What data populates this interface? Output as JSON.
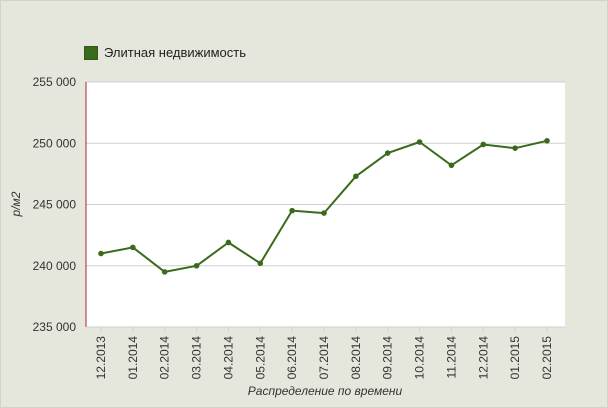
{
  "chart_data": {
    "type": "line",
    "categories": [
      "12.2013",
      "01.2014",
      "02.2014",
      "03.2014",
      "04.2014",
      "05.2014",
      "06.2014",
      "07.2014",
      "08.2014",
      "09.2014",
      "10.2014",
      "11.2014",
      "12.2014",
      "01.2015",
      "02.2015"
    ],
    "series": [
      {
        "name": "Элитная недвижимость",
        "values": [
          241000,
          241500,
          239500,
          240000,
          241900,
          240200,
          244500,
          244300,
          247300,
          249200,
          250100,
          248200,
          249900,
          249600,
          250200
        ]
      }
    ],
    "y_ticks": [
      "235 000",
      "240 000",
      "245 000",
      "250 000",
      "255 000"
    ],
    "ylim": [
      235000,
      255000
    ],
    "xlabel": "Распределение по времени",
    "ylabel": "р/м2",
    "grid": true,
    "legend_position": "top-left"
  },
  "colors": {
    "series": "#3a6b1c",
    "grid": "#cfcfcf",
    "y_axis": "#b22222",
    "plot_bg": "#ffffff",
    "frame_bg": "#e5e6dc"
  }
}
